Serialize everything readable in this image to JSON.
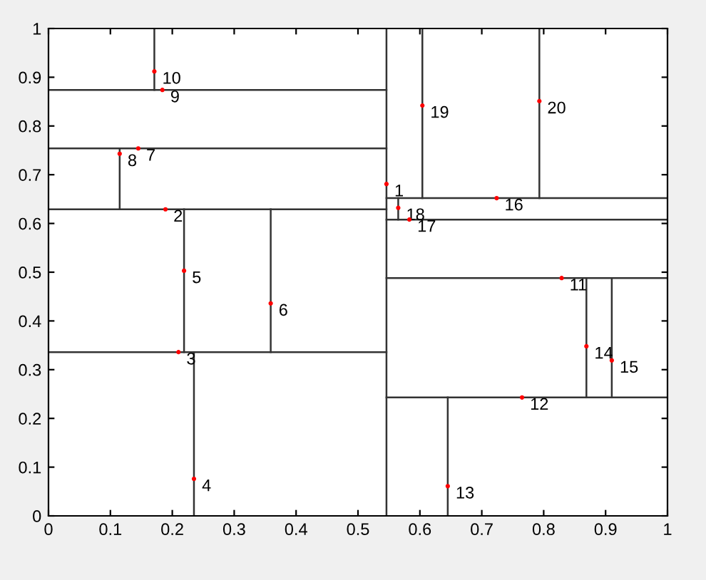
{
  "chart_data": {
    "type": "scatter",
    "xlim": [
      0,
      1
    ],
    "ylim": [
      0,
      1
    ],
    "xticks": [
      0,
      0.1,
      0.2,
      0.3,
      0.4,
      0.5,
      0.6,
      0.7,
      0.8,
      0.9,
      1
    ],
    "yticks": [
      0,
      0.1,
      0.2,
      0.3,
      0.4,
      0.5,
      0.6,
      0.7,
      0.8,
      0.9,
      1
    ],
    "grid": false,
    "series": [
      {
        "marker": "circle",
        "color": "#ff0000",
        "x": [
          0.546,
          0.189,
          0.21,
          0.235,
          0.219,
          0.359,
          0.145,
          0.115,
          0.184,
          0.171,
          0.829,
          0.765,
          0.645,
          0.869,
          0.91,
          0.724,
          0.583,
          0.565,
          0.604,
          0.793
        ],
        "values": [
          0.681,
          0.629,
          0.336,
          0.076,
          0.503,
          0.436,
          0.754,
          0.743,
          0.874,
          0.912,
          0.488,
          0.243,
          0.061,
          0.348,
          0.319,
          0.652,
          0.608,
          0.632,
          0.842,
          0.851
        ]
      },
      {
        "type": "line",
        "color": "#333333",
        "x": [
          0.546,
          0.546
        ],
        "values": [
          0,
          1
        ]
      },
      {
        "type": "line",
        "color": "#333333",
        "x": [
          0,
          0.546
        ],
        "values": [
          0.336,
          0.336
        ]
      },
      {
        "type": "line",
        "color": "#333333",
        "x": [
          0.235,
          0.235
        ],
        "values": [
          0,
          0.336
        ]
      },
      {
        "type": "line",
        "color": "#333333",
        "x": [
          0,
          0.546
        ],
        "values": [
          0.629,
          0.629
        ]
      },
      {
        "type": "line",
        "color": "#333333",
        "x": [
          0.219,
          0.219
        ],
        "values": [
          0.336,
          0.629
        ]
      },
      {
        "type": "line",
        "color": "#333333",
        "x": [
          0.359,
          0.359
        ],
        "values": [
          0.336,
          0.629
        ]
      },
      {
        "type": "line",
        "color": "#333333",
        "x": [
          0,
          0.546
        ],
        "values": [
          0.754,
          0.754
        ]
      },
      {
        "type": "line",
        "color": "#333333",
        "x": [
          0.115,
          0.115
        ],
        "values": [
          0.629,
          0.754
        ]
      },
      {
        "type": "line",
        "color": "#333333",
        "x": [
          0,
          0.546
        ],
        "values": [
          0.874,
          0.874
        ]
      },
      {
        "type": "line",
        "color": "#333333",
        "x": [
          0.171,
          0.171
        ],
        "values": [
          0.874,
          1
        ]
      },
      {
        "type": "line",
        "color": "#333333",
        "x": [
          0.546,
          1
        ],
        "values": [
          0.608,
          0.608
        ]
      },
      {
        "type": "line",
        "color": "#333333",
        "x": [
          0.546,
          1
        ],
        "values": [
          0.652,
          0.652
        ]
      },
      {
        "type": "line",
        "color": "#333333",
        "x": [
          0.565,
          0.565
        ],
        "values": [
          0.608,
          0.652
        ]
      },
      {
        "type": "line",
        "color": "#333333",
        "x": [
          0.604,
          0.604
        ],
        "values": [
          0.652,
          1
        ]
      },
      {
        "type": "line",
        "color": "#333333",
        "x": [
          0.793,
          0.793
        ],
        "values": [
          0.652,
          1
        ]
      },
      {
        "type": "line",
        "color": "#333333",
        "x": [
          0.546,
          1
        ],
        "values": [
          0.488,
          0.488
        ]
      },
      {
        "type": "line",
        "color": "#333333",
        "x": [
          0.546,
          1
        ],
        "values": [
          0.243,
          0.243
        ]
      },
      {
        "type": "line",
        "color": "#333333",
        "x": [
          0.645,
          0.645
        ],
        "values": [
          0,
          0.243
        ]
      },
      {
        "type": "line",
        "color": "#333333",
        "x": [
          0.869,
          0.869
        ],
        "values": [
          0.243,
          0.488
        ]
      },
      {
        "type": "line",
        "color": "#333333",
        "x": [
          0.91,
          0.91
        ],
        "values": [
          0.243,
          0.488
        ]
      }
    ],
    "annotations": [
      {
        "text": "1",
        "x": 0.546,
        "y": 0.681
      },
      {
        "text": "2",
        "x": 0.189,
        "y": 0.629
      },
      {
        "text": "3",
        "x": 0.21,
        "y": 0.336
      },
      {
        "text": "4",
        "x": 0.235,
        "y": 0.076
      },
      {
        "text": "5",
        "x": 0.219,
        "y": 0.503
      },
      {
        "text": "6",
        "x": 0.359,
        "y": 0.436
      },
      {
        "text": "7",
        "x": 0.145,
        "y": 0.754
      },
      {
        "text": "8",
        "x": 0.115,
        "y": 0.743
      },
      {
        "text": "9",
        "x": 0.184,
        "y": 0.874
      },
      {
        "text": "10",
        "x": 0.171,
        "y": 0.912
      },
      {
        "text": "11",
        "x": 0.829,
        "y": 0.488
      },
      {
        "text": "12",
        "x": 0.765,
        "y": 0.243
      },
      {
        "text": "13",
        "x": 0.645,
        "y": 0.061
      },
      {
        "text": "14",
        "x": 0.869,
        "y": 0.348
      },
      {
        "text": "15",
        "x": 0.91,
        "y": 0.319
      },
      {
        "text": "16",
        "x": 0.724,
        "y": 0.652
      },
      {
        "text": "17",
        "x": 0.583,
        "y": 0.608
      },
      {
        "text": "18",
        "x": 0.565,
        "y": 0.632
      },
      {
        "text": "19",
        "x": 0.604,
        "y": 0.842
      },
      {
        "text": "20",
        "x": 0.793,
        "y": 0.851
      }
    ]
  }
}
